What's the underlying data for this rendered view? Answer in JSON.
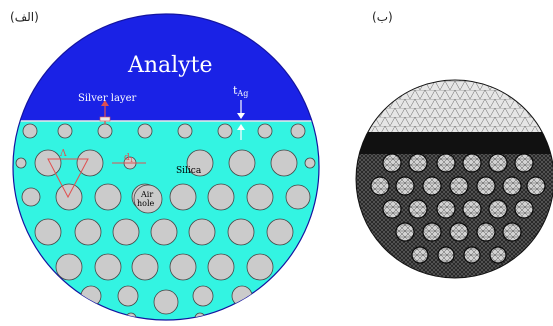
{
  "panels": {
    "a": {
      "label": "(الف)",
      "analyte_label": "Analyte",
      "silver_layer_label": "Silver layer",
      "t_label": "t",
      "t_subscript": "Ag",
      "silica_label": "Silica",
      "air_hole_label_line1": "Air",
      "air_hole_label_line2": "hole",
      "pitch_label": "Λ",
      "diameter_label": "d",
      "diameter_subscript": "1"
    },
    "b": {
      "label": "(ب)"
    }
  },
  "colors": {
    "analyte": "#1a22e6",
    "silica": "#33f4e2",
    "air_hole": "#cbcbcb",
    "silver_layer": "#e8e8e8",
    "annotation": "#e05050",
    "mesh_background": "#1a1a1a",
    "mesh_fill": "#c8c8c8"
  }
}
